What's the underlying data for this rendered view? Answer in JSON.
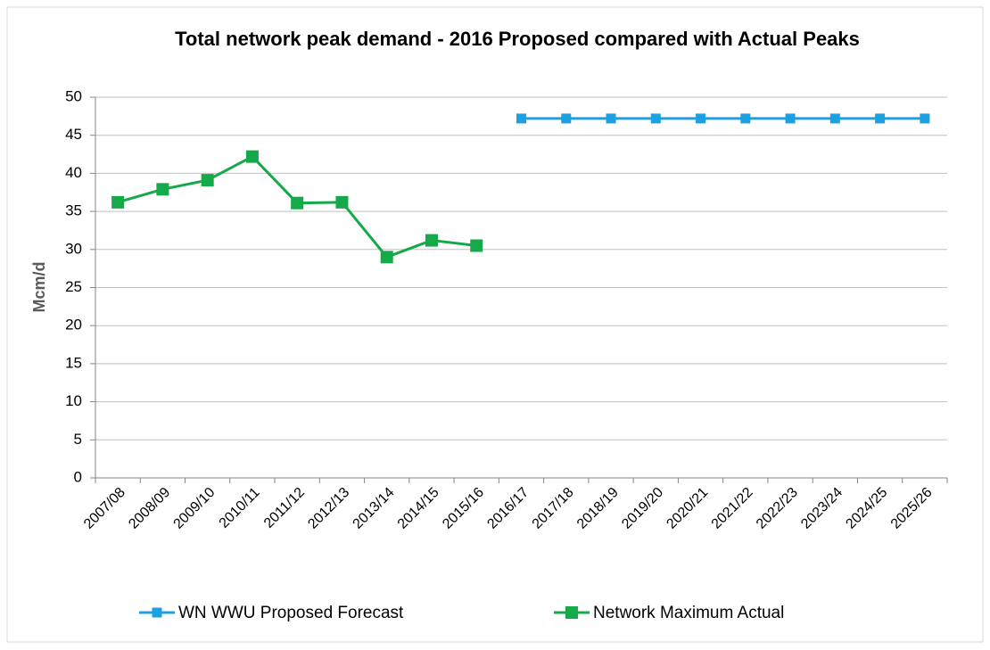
{
  "chart_data": {
    "type": "line",
    "title": "Total network peak demand - 2016 Proposed compared with Actual Peaks",
    "y_label": "Mcm/d",
    "categories": [
      "2007/08",
      "2008/09",
      "2009/10",
      "2010/11",
      "2011/12",
      "2012/13",
      "2013/14",
      "2014/15",
      "2015/16",
      "2016/17",
      "2017/18",
      "2018/19",
      "2019/20",
      "2020/21",
      "2021/22",
      "2022/23",
      "2023/24",
      "2024/25",
      "2025/26"
    ],
    "series": [
      {
        "name": "WN WWU Proposed Forecast",
        "color": "#1ba1e2",
        "marker_size": 11,
        "values": [
          null,
          null,
          null,
          null,
          null,
          null,
          null,
          null,
          null,
          47.2,
          47.2,
          47.2,
          47.2,
          47.2,
          47.2,
          47.2,
          47.2,
          47.2,
          47.2
        ]
      },
      {
        "name": "Network Maximum Actual",
        "color": "#16a94a",
        "marker_size": 14,
        "values": [
          36.2,
          37.9,
          39.1,
          42.2,
          36.1,
          36.2,
          29.0,
          31.2,
          30.5,
          null,
          null,
          null,
          null,
          null,
          null,
          null,
          null,
          null,
          null
        ]
      }
    ],
    "ylim": [
      0,
      50
    ],
    "yticks": [
      0,
      5,
      10,
      15,
      20,
      25,
      30,
      35,
      40,
      45,
      50
    ],
    "grid": true,
    "legend": "bottom"
  }
}
